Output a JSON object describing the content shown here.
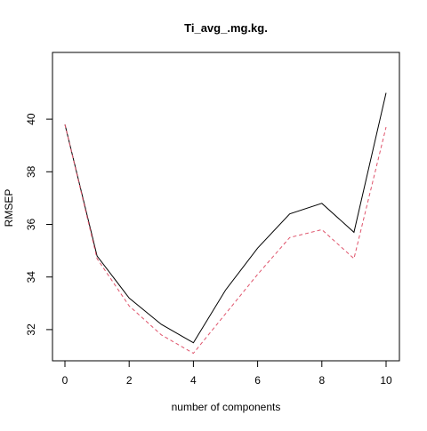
{
  "chart_data": {
    "type": "line",
    "title": "Ti_avg_.mg.kg.",
    "xlabel": "number of components",
    "ylabel": "RMSEP",
    "xlim": [
      0,
      10
    ],
    "ylim": [
      30.9,
      41.2
    ],
    "x_ticks": [
      0,
      2,
      4,
      6,
      8,
      10
    ],
    "y_ticks": [
      32,
      34,
      36,
      38,
      40
    ],
    "grid": false,
    "x": [
      0,
      1,
      2,
      3,
      4,
      5,
      6,
      7,
      8,
      9,
      10
    ],
    "series": [
      {
        "color": "#000000",
        "line_style": "solid",
        "values": [
          39.8,
          34.8,
          33.2,
          32.2,
          31.5,
          33.5,
          35.1,
          36.4,
          36.8,
          35.7,
          41.0
        ]
      },
      {
        "color": "#df536b",
        "line_style": "dashed",
        "values": [
          39.8,
          34.7,
          32.9,
          31.8,
          31.1,
          32.6,
          34.1,
          35.5,
          35.8,
          34.7,
          39.7
        ]
      }
    ]
  }
}
